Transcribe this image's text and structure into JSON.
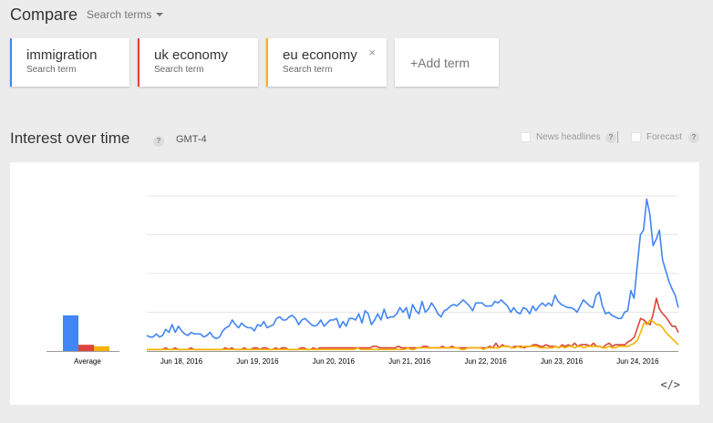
{
  "header": {
    "title": "Compare",
    "search_terms": "Search terms"
  },
  "terms": [
    {
      "label": "immigration",
      "sub": "Search term",
      "color": "#4285f4"
    },
    {
      "label": "uk economy",
      "sub": "Search term",
      "color": "#db4437"
    },
    {
      "label": "eu economy",
      "sub": "Search term",
      "color": "#f4b400",
      "removable": true,
      "remove_glyph": "×"
    }
  ],
  "add_term": "+Add term",
  "section": {
    "title": "Interest over time",
    "help_glyph": "?",
    "timezone": "GMT-4",
    "news_label": "News headlines",
    "forecast_label": "Forecast"
  },
  "chart_data": {
    "type": "line",
    "x_ticks": [
      "Jun 18, 2016",
      "Jun 19, 2016",
      "Jun 20, 2016",
      "Jun 21, 2016",
      "Jun 22, 2016",
      "Jun 23, 2016",
      "Jun 24, 2016"
    ],
    "ylim": [
      0,
      100
    ],
    "grid": true,
    "average": {
      "label": "Average",
      "values": [
        23,
        4,
        3
      ]
    },
    "series": [
      {
        "name": "immigration",
        "color": "#4285f4",
        "values": [
          10,
          9,
          9,
          11,
          9,
          10,
          14,
          12,
          17,
          12,
          16,
          13,
          11,
          10,
          12,
          11,
          11,
          11,
          9,
          10,
          12,
          9,
          8,
          9,
          13,
          15,
          16,
          20,
          17,
          15,
          18,
          16,
          15,
          15,
          13,
          17,
          16,
          19,
          15,
          16,
          17,
          21,
          22,
          20,
          20,
          22,
          23,
          21,
          17,
          20,
          21,
          19,
          17,
          16,
          17,
          20,
          16,
          18,
          20,
          20,
          21,
          15,
          19,
          16,
          21,
          21,
          20,
          24,
          18,
          26,
          24,
          17,
          20,
          24,
          20,
          27,
          21,
          22,
          22,
          24,
          28,
          25,
          28,
          21,
          30,
          26,
          24,
          32,
          25,
          27,
          31,
          28,
          24,
          22,
          26,
          27,
          29,
          30,
          29,
          31,
          33,
          31,
          29,
          26,
          31,
          31,
          31,
          29,
          29,
          29,
          32,
          31,
          33,
          31,
          29,
          25,
          28,
          25,
          24,
          28,
          27,
          24,
          29,
          26,
          29,
          31,
          29,
          31,
          29,
          36,
          32,
          30,
          29,
          28,
          28,
          27,
          25,
          29,
          33,
          31,
          29,
          28,
          36,
          38,
          29,
          24,
          25,
          23,
          22,
          21,
          21,
          25,
          26,
          39,
          34,
          55,
          75,
          78,
          98,
          88,
          68,
          72,
          78,
          59,
          52,
          45,
          40,
          36,
          28
        ]
      },
      {
        "name": "uk economy",
        "color": "#db4437",
        "values": [
          1,
          1,
          1,
          1,
          1,
          1,
          2,
          1,
          1,
          2,
          1,
          1,
          1,
          1,
          2,
          1,
          1,
          1,
          1,
          1,
          1,
          1,
          1,
          1,
          1,
          2,
          1,
          2,
          1,
          1,
          1,
          2,
          1,
          1,
          2,
          2,
          1,
          2,
          2,
          1,
          1,
          2,
          1,
          2,
          2,
          1,
          1,
          1,
          1,
          2,
          2,
          1,
          1,
          2,
          1,
          2,
          2,
          2,
          2,
          2,
          2,
          2,
          2,
          2,
          2,
          2,
          2,
          2,
          2,
          2,
          2,
          2,
          3,
          3,
          2,
          2,
          2,
          2,
          2,
          2,
          3,
          2,
          2,
          2,
          2,
          2,
          2,
          2,
          3,
          3,
          2,
          2,
          2,
          2,
          3,
          2,
          2,
          3,
          2,
          2,
          2,
          2,
          2,
          2,
          2,
          2,
          2,
          2,
          2,
          3,
          2,
          5,
          2,
          4,
          3,
          3,
          2,
          3,
          3,
          3,
          2,
          3,
          3,
          4,
          4,
          3,
          3,
          4,
          3,
          3,
          3,
          2,
          4,
          3,
          4,
          3,
          5,
          3,
          4,
          4,
          4,
          3,
          5,
          3,
          3,
          2,
          4,
          5,
          3,
          4,
          4,
          4,
          4,
          6,
          7,
          9,
          15,
          21,
          20,
          18,
          17,
          24,
          34,
          27,
          24,
          22,
          19,
          16,
          16,
          12
        ]
      },
      {
        "name": "eu economy",
        "color": "#f4b400",
        "values": [
          1,
          1,
          1,
          1,
          1,
          1,
          1,
          1,
          1,
          1,
          1,
          1,
          1,
          1,
          1,
          1,
          1,
          1,
          1,
          1,
          1,
          1,
          1,
          1,
          1,
          1,
          1,
          1,
          1,
          1,
          1,
          1,
          1,
          1,
          1,
          1,
          1,
          1,
          1,
          1,
          1,
          1,
          1,
          1,
          1,
          1,
          1,
          1,
          1,
          1,
          1,
          1,
          1,
          1,
          1,
          1,
          1,
          1,
          1,
          1,
          1,
          1,
          1,
          1,
          1,
          1,
          1,
          2,
          1,
          1,
          1,
          1,
          1,
          1,
          1,
          1,
          1,
          1,
          1,
          1,
          1,
          1,
          1,
          2,
          1,
          1,
          2,
          2,
          2,
          2,
          2,
          2,
          2,
          2,
          2,
          2,
          2,
          2,
          2,
          2,
          1,
          1,
          2,
          2,
          2,
          2,
          2,
          1,
          2,
          2,
          2,
          2,
          2,
          3,
          3,
          3,
          2,
          2,
          3,
          2,
          3,
          3,
          3,
          3,
          3,
          2,
          2,
          2,
          2,
          2,
          3,
          2,
          3,
          2,
          3,
          3,
          2,
          3,
          3,
          2,
          3,
          3,
          3,
          3,
          3,
          2,
          2,
          3,
          2,
          2,
          3,
          3,
          3,
          3,
          4,
          5,
          7,
          12,
          18,
          17,
          20,
          19,
          17,
          17,
          15,
          12,
          10,
          8,
          6,
          4
        ]
      }
    ]
  },
  "embed_glyph": "</>"
}
